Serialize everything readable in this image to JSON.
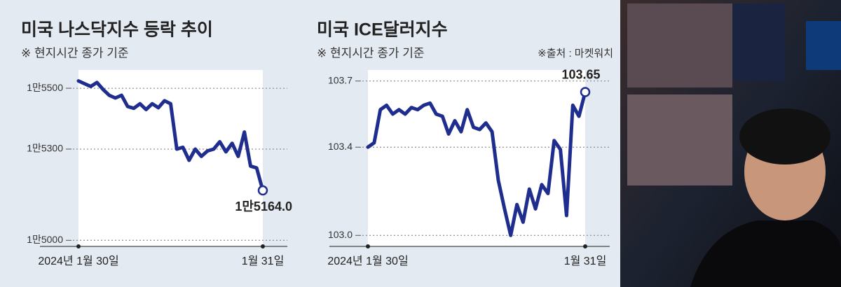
{
  "chart_data": [
    {
      "type": "line",
      "title": "미국 나스닥지수 등락 추이",
      "subtitle": "※ 현지시간 종가 기준",
      "categories": [
        "2024년 1월 30일",
        null,
        null,
        null,
        null,
        null,
        null,
        null,
        null,
        null,
        null,
        null,
        null,
        null,
        null,
        null,
        null,
        null,
        null,
        null,
        null,
        null,
        null,
        null,
        null,
        null,
        null,
        null,
        null,
        null,
        "1월 31일"
      ],
      "values": [
        15524,
        15515,
        15506,
        15519,
        15496,
        15477,
        15468,
        15477,
        15440,
        15434,
        15449,
        15430,
        15449,
        15436,
        15459,
        15449,
        15300,
        15306,
        15263,
        15300,
        15276,
        15294,
        15300,
        15324,
        15291,
        15319,
        15276,
        15356,
        15244,
        15238,
        15164
      ],
      "value_labels": [
        null,
        null,
        null,
        null,
        null,
        null,
        null,
        null,
        null,
        null,
        null,
        null,
        null,
        null,
        null,
        null,
        null,
        null,
        null,
        null,
        null,
        null,
        null,
        null,
        null,
        null,
        null,
        null,
        null,
        null,
        "1만5164.0"
      ],
      "color": "#1f2d8f",
      "ylim": [
        14980,
        15560
      ],
      "yticks": [
        {
          "value": 15000,
          "label": "1만5000"
        },
        {
          "value": 15300,
          "label": "1만5300"
        },
        {
          "value": 15500,
          "label": "1만5500"
        }
      ],
      "grid": true
    },
    {
      "type": "line",
      "title": "미국 ICE달러지수",
      "subtitle": "※ 현지시간 종가 기준",
      "source": "※출처 : 마켓워치",
      "categories": [
        "2024년 1월 30일",
        null,
        null,
        null,
        null,
        null,
        null,
        null,
        null,
        null,
        null,
        null,
        null,
        null,
        null,
        null,
        null,
        null,
        null,
        null,
        null,
        null,
        null,
        null,
        null,
        null,
        null,
        null,
        null,
        null,
        null,
        null,
        null,
        null,
        null,
        "1월 31일"
      ],
      "values": [
        103.4,
        103.42,
        103.57,
        103.59,
        103.55,
        103.57,
        103.55,
        103.58,
        103.57,
        103.59,
        103.6,
        103.55,
        103.54,
        103.46,
        103.52,
        103.47,
        103.57,
        103.49,
        103.48,
        103.51,
        103.47,
        103.25,
        103.12,
        103.0,
        103.14,
        103.06,
        103.21,
        103.12,
        103.23,
        103.19,
        103.43,
        103.39,
        103.09,
        103.59,
        103.54,
        103.65
      ],
      "color": "#1f2d8f",
      "ylim": [
        102.95,
        103.75
      ],
      "yticks": [
        {
          "value": 103.0,
          "label": "103.0"
        },
        {
          "value": 103.4,
          "label": "103.4"
        },
        103.7
      ],
      "grid": true
    }
  ]
}
